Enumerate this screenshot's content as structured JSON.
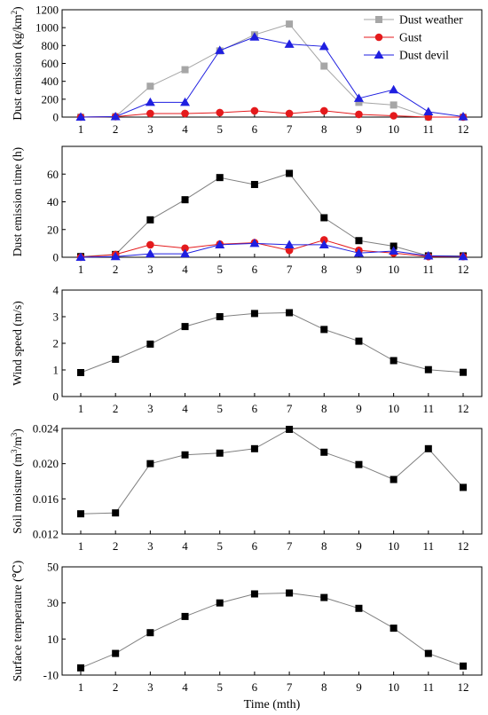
{
  "chart_data": [
    {
      "type": "line",
      "ylabel": "Dust emission (kg/km²)",
      "ylabel_parts": [
        "Dust emission (kg/km",
        "2",
        ")"
      ],
      "ylim": [
        0,
        1200
      ],
      "yticks": [
        0,
        200,
        400,
        600,
        800,
        1000,
        1200
      ],
      "x": [
        1,
        2,
        3,
        4,
        5,
        6,
        7,
        8,
        9,
        10,
        11,
        12
      ],
      "legend_position": "top-right",
      "series": [
        {
          "name": "Dust weather",
          "color": "#a6a6a6",
          "marker": "square",
          "values": [
            0,
            5,
            345,
            530,
            740,
            920,
            1040,
            570,
            165,
            135,
            0,
            0
          ]
        },
        {
          "name": "Gust",
          "color": "#e41a1c",
          "marker": "circle",
          "values": [
            0,
            5,
            40,
            40,
            50,
            70,
            40,
            70,
            30,
            15,
            0,
            0
          ]
        },
        {
          "name": "Dust devil",
          "color": "#1f1fe0",
          "marker": "triangle",
          "values": [
            0,
            5,
            165,
            165,
            745,
            895,
            815,
            790,
            210,
            305,
            60,
            5
          ]
        }
      ]
    },
    {
      "type": "line",
      "ylabel": "Dust emission time (h)",
      "ylim": [
        0,
        80
      ],
      "yticks": [
        0,
        20,
        40,
        60
      ],
      "x": [
        1,
        2,
        3,
        4,
        5,
        6,
        7,
        8,
        9,
        10,
        11,
        12
      ],
      "series": [
        {
          "color": "#000000",
          "marker": "square",
          "values": [
            0.5,
            2,
            27,
            41.5,
            57.5,
            52.5,
            60.5,
            28.5,
            12,
            8,
            1,
            1
          ]
        },
        {
          "color": "#e41a1c",
          "marker": "circle",
          "values": [
            0,
            2,
            9,
            6.5,
            9.5,
            10.5,
            5,
            12.5,
            5,
            3,
            0.5,
            0.5
          ]
        },
        {
          "color": "#1f1fe0",
          "marker": "triangle",
          "values": [
            0,
            0.5,
            2.5,
            2.5,
            9,
            10,
            9,
            9,
            3,
            4.5,
            1,
            0.5
          ]
        }
      ]
    },
    {
      "type": "line",
      "ylabel": "Wind speed (m/s)",
      "ylim": [
        0,
        4
      ],
      "yticks": [
        0,
        1,
        2,
        3,
        4
      ],
      "x": [
        1,
        2,
        3,
        4,
        5,
        6,
        7,
        8,
        9,
        10,
        11,
        12
      ],
      "series": [
        {
          "color": "#000000",
          "marker": "square",
          "values": [
            0.9,
            1.4,
            1.97,
            2.63,
            3.0,
            3.12,
            3.15,
            2.52,
            2.08,
            1.35,
            1.01,
            0.91
          ]
        }
      ]
    },
    {
      "type": "line",
      "ylabel": "Soil moisture (m³/m³)",
      "ylabel_parts": [
        "Soil moisture (m",
        "3",
        "/m",
        "3",
        ")"
      ],
      "ylim": [
        0.012,
        0.024
      ],
      "yticks": [
        "0.012",
        "0.016",
        "0.020",
        "0.024"
      ],
      "x": [
        1,
        2,
        3,
        4,
        5,
        6,
        7,
        8,
        9,
        10,
        11,
        12
      ],
      "series": [
        {
          "color": "#000000",
          "marker": "square",
          "values": [
            0.0143,
            0.0144,
            0.02,
            0.021,
            0.0212,
            0.0217,
            0.0239,
            0.0213,
            0.0199,
            0.0182,
            0.0217,
            0.0173
          ]
        }
      ]
    },
    {
      "type": "line",
      "ylabel": "Surface temperature (℃)",
      "xlabel": "Time (mth)",
      "ylim": [
        -10,
        50
      ],
      "yticks": [
        -10,
        10,
        30,
        50
      ],
      "x": [
        1,
        2,
        3,
        4,
        5,
        6,
        7,
        8,
        9,
        10,
        11,
        12
      ],
      "series": [
        {
          "color": "#000000",
          "marker": "square",
          "values": [
            -6,
            2,
            13.5,
            22.5,
            30,
            35,
            35.5,
            33,
            27,
            16,
            2,
            -5
          ]
        }
      ]
    }
  ]
}
